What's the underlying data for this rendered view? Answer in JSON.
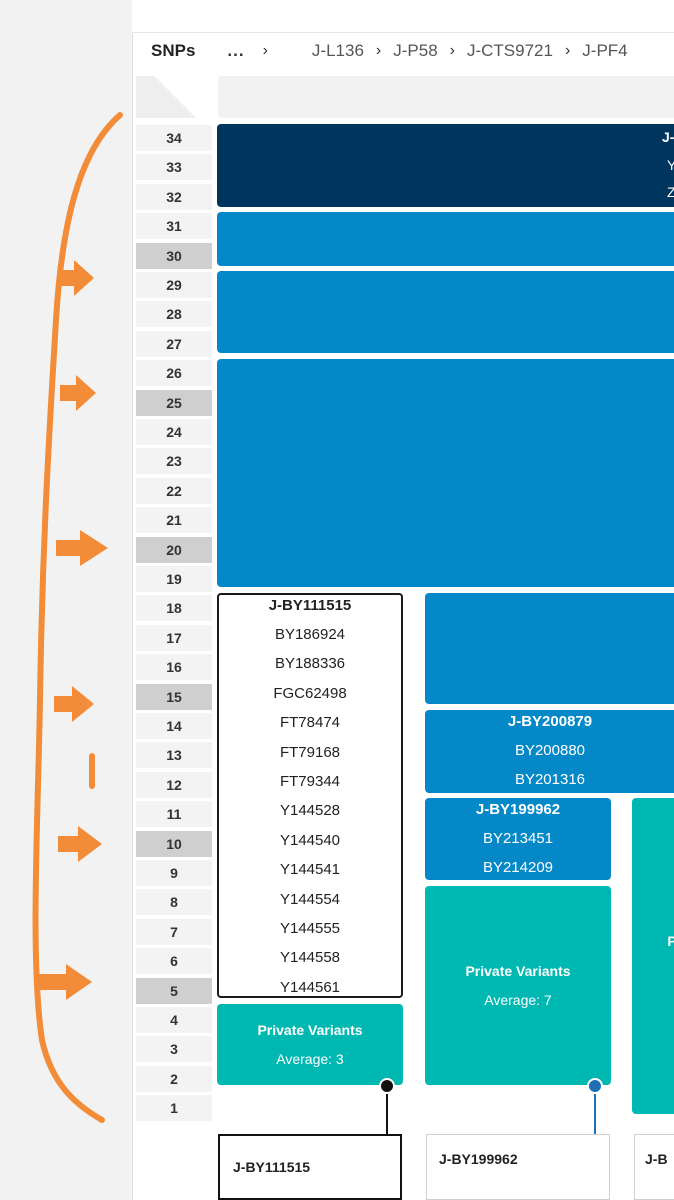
{
  "breadcrumb": {
    "title": "SNPs",
    "ellipsis": "...",
    "crumbs": [
      "J-L136",
      "J-P58",
      "J-CTS9721",
      "J-PF4"
    ]
  },
  "row_labels": [
    {
      "text": "34",
      "major": false
    },
    {
      "text": "33",
      "major": false
    },
    {
      "text": "32",
      "major": false
    },
    {
      "text": "31",
      "major": false
    },
    {
      "text": "30",
      "major": true
    },
    {
      "text": "29",
      "major": false
    },
    {
      "text": "28",
      "major": false
    },
    {
      "text": "27",
      "major": false
    },
    {
      "text": "26",
      "major": false
    },
    {
      "text": "25",
      "major": true
    },
    {
      "text": "24",
      "major": false
    },
    {
      "text": "23",
      "major": false
    },
    {
      "text": "22",
      "major": false
    },
    {
      "text": "21",
      "major": false
    },
    {
      "text": "20",
      "major": true
    },
    {
      "text": "19",
      "major": false
    },
    {
      "text": "18",
      "major": false
    },
    {
      "text": "17",
      "major": false
    },
    {
      "text": "16",
      "major": false
    },
    {
      "text": "15",
      "major": true
    },
    {
      "text": "14",
      "major": false
    },
    {
      "text": "13",
      "major": false
    },
    {
      "text": "12",
      "major": false
    },
    {
      "text": "11",
      "major": false
    },
    {
      "text": "10",
      "major": true
    },
    {
      "text": "9",
      "major": false
    },
    {
      "text": "8",
      "major": false
    },
    {
      "text": "7",
      "major": false
    },
    {
      "text": "6",
      "major": false
    },
    {
      "text": "5",
      "major": true
    },
    {
      "text": "4",
      "major": false
    },
    {
      "text": "3",
      "major": false
    },
    {
      "text": "2",
      "major": false
    },
    {
      "text": "1",
      "major": false
    }
  ],
  "dark_block": {
    "edge_lines": [
      "J-",
      "Y",
      "Z"
    ]
  },
  "bordered_block": {
    "title": "J-BY111515",
    "snps": [
      "BY186924",
      "BY188336",
      "FGC62498",
      "FT78474",
      "FT79168",
      "FT79344",
      "Y144528",
      "Y144540",
      "Y144541",
      "Y144554",
      "Y144555",
      "Y144558",
      "Y144561"
    ]
  },
  "block_by200879": {
    "title": "J-BY200879",
    "snps": [
      "BY200880",
      "BY201316"
    ]
  },
  "block_by199962": {
    "title": "J-BY199962",
    "snps": [
      "BY213451",
      "BY214209"
    ]
  },
  "private_left": {
    "title": "Private Variants",
    "average": "Average: 3"
  },
  "private_mid": {
    "title": "Private Variants",
    "average": "Average: 7"
  },
  "private_right_edge": "P",
  "leaf_nodes": [
    {
      "label": "J-BY111515",
      "selected": true
    },
    {
      "label": "J-BY199962",
      "selected": false
    },
    {
      "label": "J-B",
      "selected": false
    }
  ],
  "colors": {
    "dark": "#00365e",
    "blue": "#0588c8",
    "teal": "#00b8b2",
    "annotation": "#f28c38"
  }
}
